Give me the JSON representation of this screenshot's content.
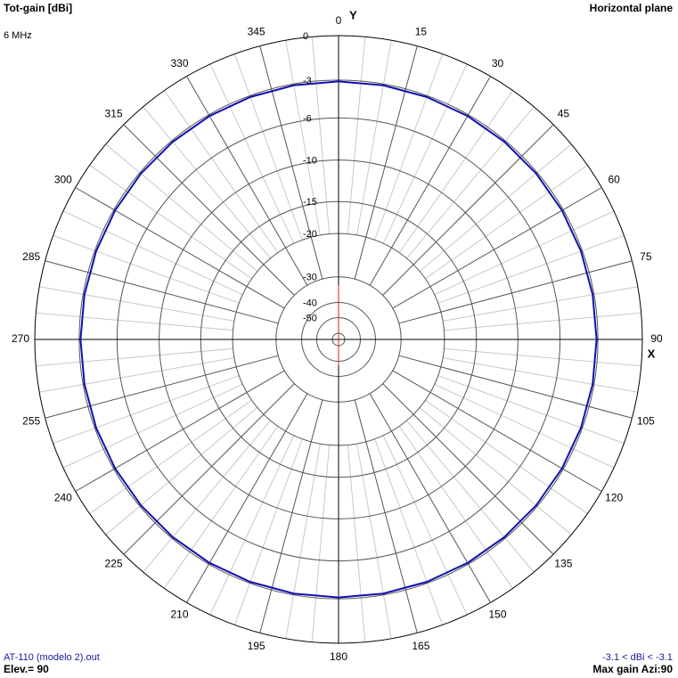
{
  "chart_data": {
    "type": "polar",
    "title": "Tot-gain [dBi]",
    "subtitle": "6 MHz",
    "plane": "Horizontal plane",
    "y_axis_label": "Y",
    "x_axis_label": "X",
    "rlim": [
      -50,
      0
    ],
    "rticks": [
      0,
      -3,
      -6,
      -10,
      -15,
      -20,
      -30,
      -40,
      -50
    ],
    "angle_ticks": [
      0,
      15,
      30,
      45,
      60,
      75,
      90,
      105,
      120,
      135,
      150,
      165,
      180,
      195,
      210,
      225,
      240,
      255,
      270,
      285,
      300,
      315,
      330,
      345
    ],
    "series": [
      {
        "name": "AT-110 (modelo 2).out",
        "color": "#1010b0",
        "theta": [
          0,
          10,
          20,
          30,
          40,
          50,
          60,
          70,
          80,
          90,
          100,
          110,
          120,
          130,
          140,
          150,
          160,
          170,
          180,
          190,
          200,
          210,
          220,
          230,
          240,
          250,
          260,
          270,
          280,
          290,
          300,
          310,
          320,
          330,
          340,
          350
        ],
        "values": [
          -3.1,
          -3.1,
          -3.1,
          -3.1,
          -3.1,
          -3.1,
          -3.1,
          -3.1,
          -3.1,
          -3.1,
          -3.1,
          -3.1,
          -3.1,
          -3.1,
          -3.1,
          -3.1,
          -3.1,
          -3.1,
          -3.1,
          -3.1,
          -3.1,
          -3.1,
          -3.1,
          -3.1,
          -3.1,
          -3.1,
          -3.1,
          -3.1,
          -3.1,
          -3.1,
          -3.1,
          -3.1,
          -3.1,
          -3.1,
          -3.1,
          -3.1
        ]
      }
    ],
    "range_label": "-3.1 < dBi < -3.1",
    "elevation": "Elev.= 90",
    "max_gain": "Max gain Azi:90"
  }
}
